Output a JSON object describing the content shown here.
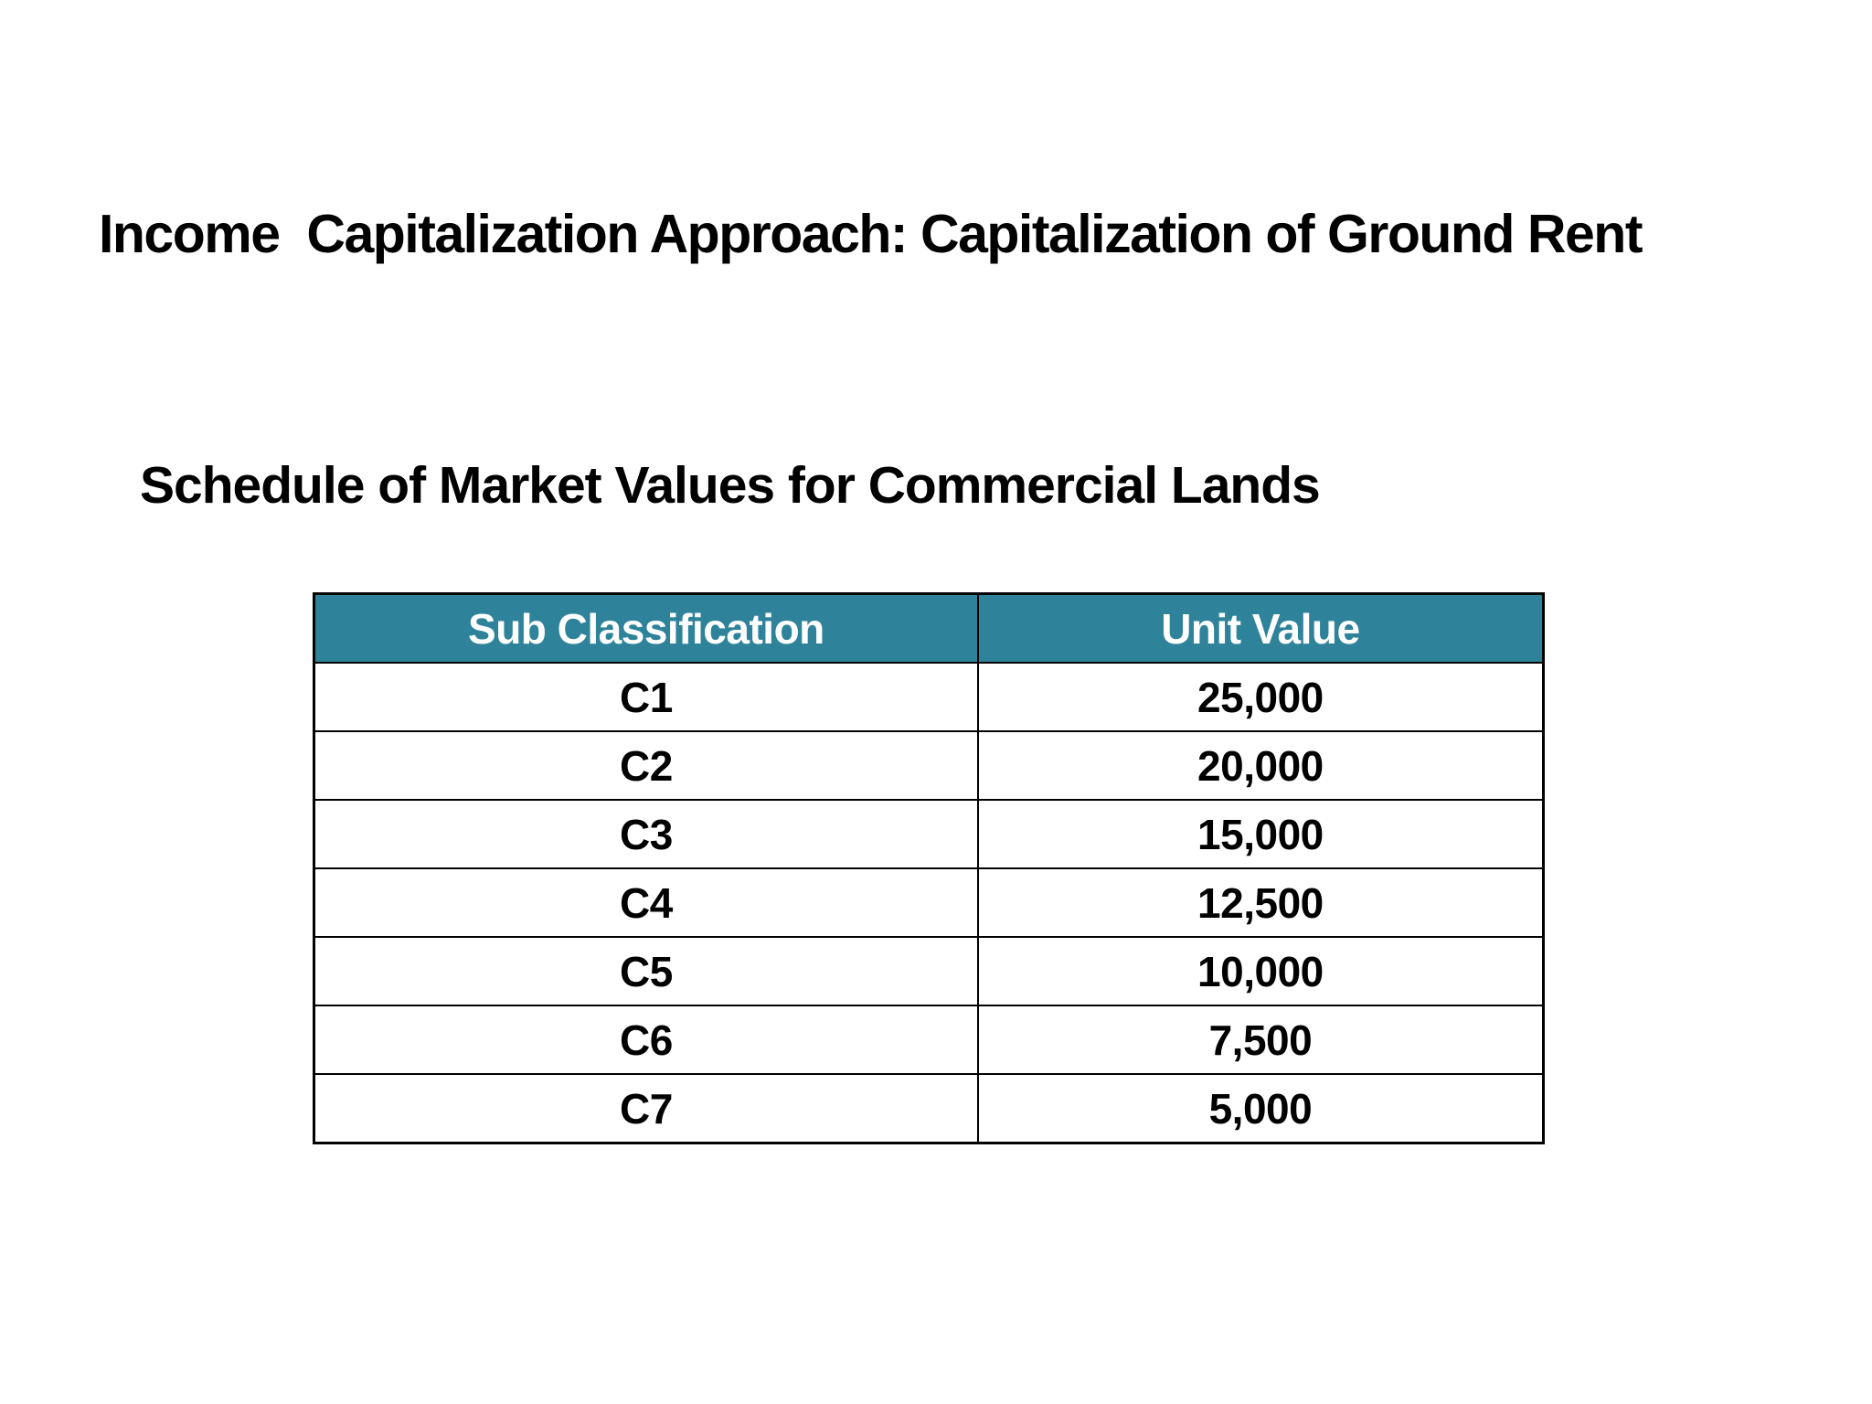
{
  "slide": {
    "title": "Income  Capitalization Approach: Capitalization of Ground Rent",
    "subtitle": "Schedule of Market Values for Commercial Lands"
  },
  "table": {
    "columns": [
      "Sub Classification",
      "Unit Value"
    ],
    "rows": [
      [
        "C1",
        "25,000"
      ],
      [
        "C2",
        "20,000"
      ],
      [
        "C3",
        "15,000"
      ],
      [
        "C4",
        "12,500"
      ],
      [
        "C5",
        "10,000"
      ],
      [
        "C6",
        "7,500"
      ],
      [
        "C7",
        "5,000"
      ]
    ]
  },
  "colors": {
    "header_background": "#2E839B",
    "header_text": "#FFFFFF",
    "table_border": "#000000",
    "body_text": "#000000",
    "slide_background": "#FFFFFF"
  }
}
